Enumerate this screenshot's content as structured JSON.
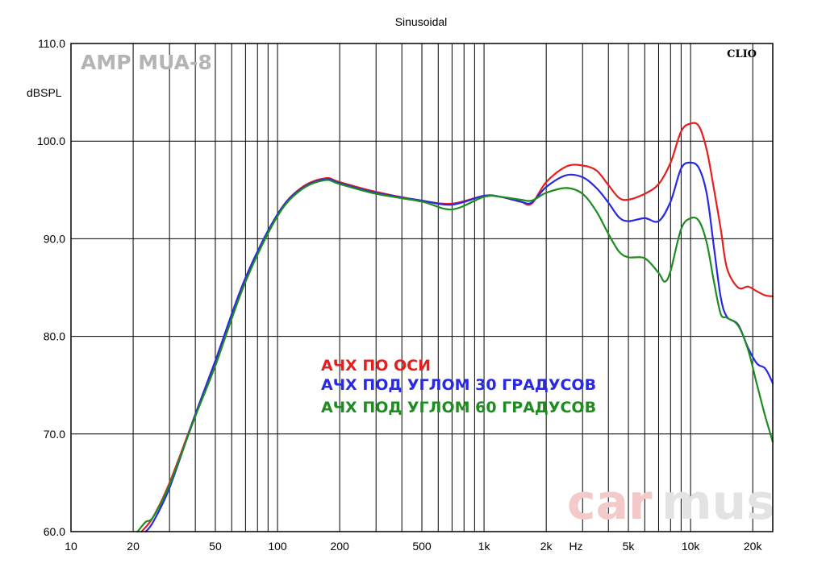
{
  "chart_data": {
    "type": "line",
    "title": "Sinusoidal",
    "ylabel": "dBSPL",
    "xlabel": "Hz",
    "x_scale": "log",
    "xlim": [
      10,
      25000
    ],
    "ylim": [
      60,
      110
    ],
    "grid": true,
    "x_ticks": [
      {
        "value": 10,
        "label": "10"
      },
      {
        "value": 20,
        "label": "20"
      },
      {
        "value": 50,
        "label": "50"
      },
      {
        "value": 100,
        "label": "100"
      },
      {
        "value": 200,
        "label": "200"
      },
      {
        "value": 500,
        "label": "500"
      },
      {
        "value": 1000,
        "label": "1k"
      },
      {
        "value": 2000,
        "label": "2k"
      },
      {
        "value": 5000,
        "label": "5k"
      },
      {
        "value": 10000,
        "label": "10k"
      },
      {
        "value": 20000,
        "label": "20k"
      }
    ],
    "y_ticks": [
      {
        "value": 60,
        "label": "60.0"
      },
      {
        "value": 70,
        "label": "70.0"
      },
      {
        "value": 80,
        "label": "80.0"
      },
      {
        "value": 90,
        "label": "90.0"
      },
      {
        "value": 100,
        "label": "100.0"
      },
      {
        "value": 110,
        "label": "110.0"
      }
    ],
    "legend_position": "center-left",
    "series": [
      {
        "name": "АЧХ ПО ОСИ",
        "color": "#e61e1e",
        "x": [
          22,
          25,
          30,
          40,
          50,
          70,
          100,
          130,
          170,
          200,
          300,
          500,
          700,
          1000,
          1200,
          1500,
          1700,
          2000,
          2500,
          3000,
          3500,
          4000,
          4500,
          5000,
          6000,
          7000,
          8000,
          9000,
          10000,
          11000,
          12000,
          13000,
          14000,
          15000,
          17000,
          19000,
          21000,
          23000,
          25000
        ],
        "y": [
          60.0,
          61.5,
          65.0,
          72.0,
          77.5,
          86.0,
          92.5,
          95.2,
          96.2,
          95.8,
          94.8,
          93.9,
          93.6,
          94.4,
          94.3,
          93.8,
          93.6,
          95.8,
          97.4,
          97.5,
          97.0,
          95.5,
          94.2,
          94.0,
          94.6,
          95.6,
          97.8,
          101.0,
          101.8,
          101.5,
          99.0,
          95.0,
          91.0,
          87.0,
          85.0,
          85.1,
          84.6,
          84.2,
          84.1
        ]
      },
      {
        "name": "АЧХ ПОД УГЛОМ 30 ГРАДУСОВ",
        "color": "#2828e6",
        "x": [
          23,
          25,
          30,
          40,
          50,
          70,
          100,
          130,
          170,
          200,
          300,
          500,
          700,
          1000,
          1200,
          1500,
          1700,
          2000,
          2500,
          3000,
          3500,
          4000,
          4500,
          5000,
          6000,
          7000,
          8000,
          9000,
          10000,
          11000,
          12000,
          13000,
          14000,
          15000,
          17000,
          19000,
          21000,
          23000,
          25000
        ],
        "y": [
          60.0,
          61.0,
          64.5,
          72.0,
          77.5,
          86.0,
          92.5,
          95.1,
          96.1,
          95.7,
          94.7,
          93.9,
          93.5,
          94.4,
          94.3,
          93.8,
          93.7,
          95.3,
          96.5,
          96.3,
          95.2,
          93.7,
          92.2,
          91.8,
          92.1,
          91.8,
          93.8,
          97.2,
          97.8,
          97.2,
          94.5,
          89.0,
          84.0,
          82.0,
          81.2,
          78.8,
          77.2,
          76.7,
          75.2
        ]
      },
      {
        "name": "АЧХ ПОД УГЛОМ 60 ГРАДУСОВ",
        "color": "#1e8c1e",
        "x": [
          21,
          23,
          25,
          30,
          40,
          50,
          70,
          100,
          130,
          170,
          200,
          300,
          500,
          700,
          1000,
          1200,
          1500,
          1700,
          2000,
          2500,
          3000,
          3500,
          4000,
          4500,
          5000,
          6000,
          7000,
          7500,
          8000,
          9000,
          10000,
          11000,
          12000,
          13000,
          14000,
          15000,
          17000,
          19000,
          21000,
          23000,
          25000
        ],
        "y": [
          60.0,
          61.0,
          61.5,
          64.8,
          71.8,
          77.0,
          85.6,
          92.3,
          95.0,
          96.0,
          95.6,
          94.6,
          93.8,
          93.0,
          94.3,
          94.3,
          94.0,
          93.9,
          94.7,
          95.2,
          94.6,
          92.8,
          90.5,
          88.7,
          88.1,
          88.0,
          86.5,
          85.6,
          86.7,
          91.0,
          92.1,
          91.8,
          89.5,
          85.5,
          82.3,
          81.9,
          81.1,
          78.6,
          75.0,
          71.8,
          69.2
        ]
      }
    ]
  },
  "labels": {
    "model": "AMP MUA-8",
    "brand": "CLIO",
    "watermark_left": "car",
    "watermark_right": "mus"
  },
  "colors": {
    "background": "#ffffff",
    "grid": "#000000",
    "model_text": "#b4b4b4",
    "watermark_left": "#f3c9c9",
    "watermark_right": "#e3e3e3"
  }
}
